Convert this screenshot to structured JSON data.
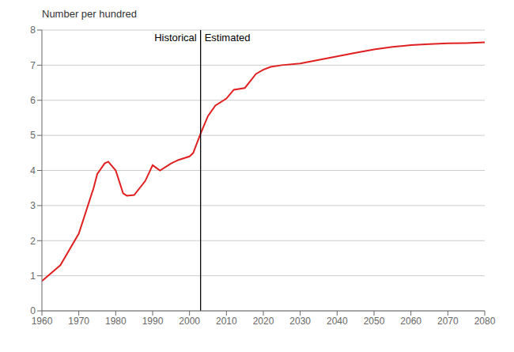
{
  "chart_data": {
    "type": "line",
    "ylabel": "Number per hundred",
    "series": [
      {
        "color": "#e02020",
        "x": [
          1960,
          1965,
          1970,
          1974,
          1975,
          1977,
          1978,
          1980,
          1982,
          1983,
          1985,
          1988,
          1990,
          1992,
          1995,
          1997,
          2000,
          2001,
          2003
        ],
        "values": [
          0.85,
          1.3,
          2.2,
          3.5,
          3.9,
          4.2,
          4.25,
          4.0,
          3.35,
          3.28,
          3.3,
          3.7,
          4.15,
          4.0,
          4.2,
          4.3,
          4.4,
          4.5,
          5.05
        ]
      },
      {
        "color": "#e02020",
        "x": [
          2003,
          2005,
          2007,
          2010,
          2012,
          2015,
          2018,
          2020,
          2022,
          2025,
          2030,
          2035,
          2040,
          2045,
          2050,
          2055,
          2060,
          2065,
          2070,
          2075,
          2080
        ],
        "values": [
          5.05,
          5.55,
          5.85,
          6.05,
          6.3,
          6.35,
          6.75,
          6.87,
          6.95,
          7.0,
          7.05,
          7.15,
          7.25,
          7.35,
          7.45,
          7.52,
          7.57,
          7.6,
          7.62,
          7.63,
          7.65
        ]
      }
    ],
    "divider_x": 2003,
    "annotations": [
      "Historical",
      "Estimated"
    ],
    "xlim": [
      1960,
      2080
    ],
    "xticks": [
      1960,
      1970,
      1980,
      1990,
      2000,
      2010,
      2020,
      2030,
      2040,
      2050,
      2060,
      2070,
      2080
    ],
    "ylim": [
      0,
      8
    ],
    "yticks": [
      0,
      1,
      2,
      3,
      4,
      5,
      6,
      7,
      8
    ],
    "grid": "y"
  }
}
